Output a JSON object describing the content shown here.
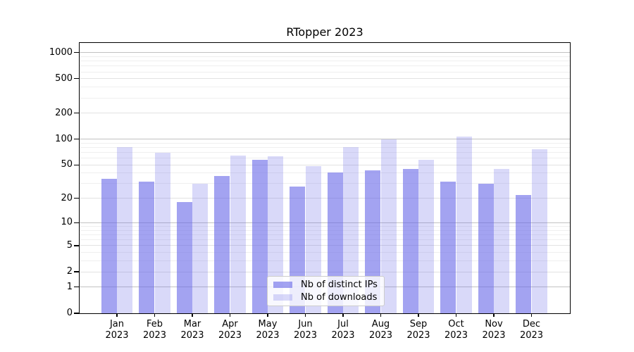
{
  "title": "RTopper 2023",
  "chart_data": {
    "type": "bar",
    "title": "RTopper 2023",
    "categories": [
      "Jan",
      "Feb",
      "Mar",
      "Apr",
      "May",
      "Jun",
      "Jul",
      "Aug",
      "Sep",
      "Oct",
      "Nov",
      "Dec"
    ],
    "year_label": "2023",
    "series": [
      {
        "name": "Nb of distinct IPs",
        "color": "#6666E899",
        "values": [
          34,
          32,
          18,
          37,
          57,
          28,
          41,
          43,
          45,
          32,
          30,
          22
        ]
      },
      {
        "name": "Nb of downloads",
        "color": "#6666E840",
        "values": [
          80,
          69,
          30,
          64,
          63,
          48,
          81,
          100,
          57,
          107,
          45,
          77
        ]
      }
    ],
    "y_axis": {
      "scale": "log1p",
      "tick_labels": [
        0,
        1,
        2,
        5,
        10,
        20,
        50,
        100,
        200,
        500,
        1000
      ],
      "major_gridlines": [
        1,
        10,
        100,
        1000
      ],
      "mid_gridlines": [
        2,
        5,
        20,
        50,
        200,
        500
      ],
      "minor_gridlines": [
        3,
        4,
        6,
        7,
        8,
        9,
        30,
        40,
        60,
        70,
        80,
        90,
        300,
        400,
        600,
        700,
        800,
        900
      ]
    },
    "grid_colors": {
      "major": "#C2C2C2",
      "mid": "#E2E2E2",
      "minor": "#EFEFEF"
    },
    "legend": {
      "position": "lower center"
    },
    "axis_color": "#000000",
    "background_color": "#FFFFFF"
  }
}
